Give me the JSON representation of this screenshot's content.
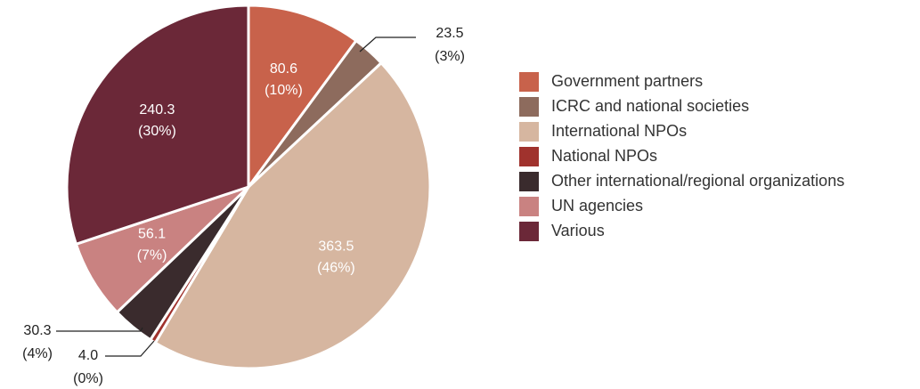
{
  "chart_data": {
    "type": "pie",
    "categories": [
      "Government partners",
      "ICRC and national societies",
      "International NPOs",
      "National NPOs",
      "Other international/regional organizations",
      "UN agencies",
      "Various"
    ],
    "values": [
      80.6,
      23.5,
      363.5,
      4.0,
      30.3,
      56.1,
      240.3
    ],
    "value_labels": [
      "80.6",
      "23.5",
      "363.5",
      "4.0",
      "30.3",
      "56.1",
      "240.3"
    ],
    "percent_labels": [
      "(10%)",
      "(3%)",
      "(46%)",
      "(0%)",
      "(4%)",
      "(7%)",
      "(30%)"
    ],
    "colors": [
      "#c8624b",
      "#8d6b5d",
      "#d6b6a0",
      "#a0322d",
      "#3a2b2d",
      "#c98281",
      "#6b2838"
    ],
    "legend": "right"
  }
}
